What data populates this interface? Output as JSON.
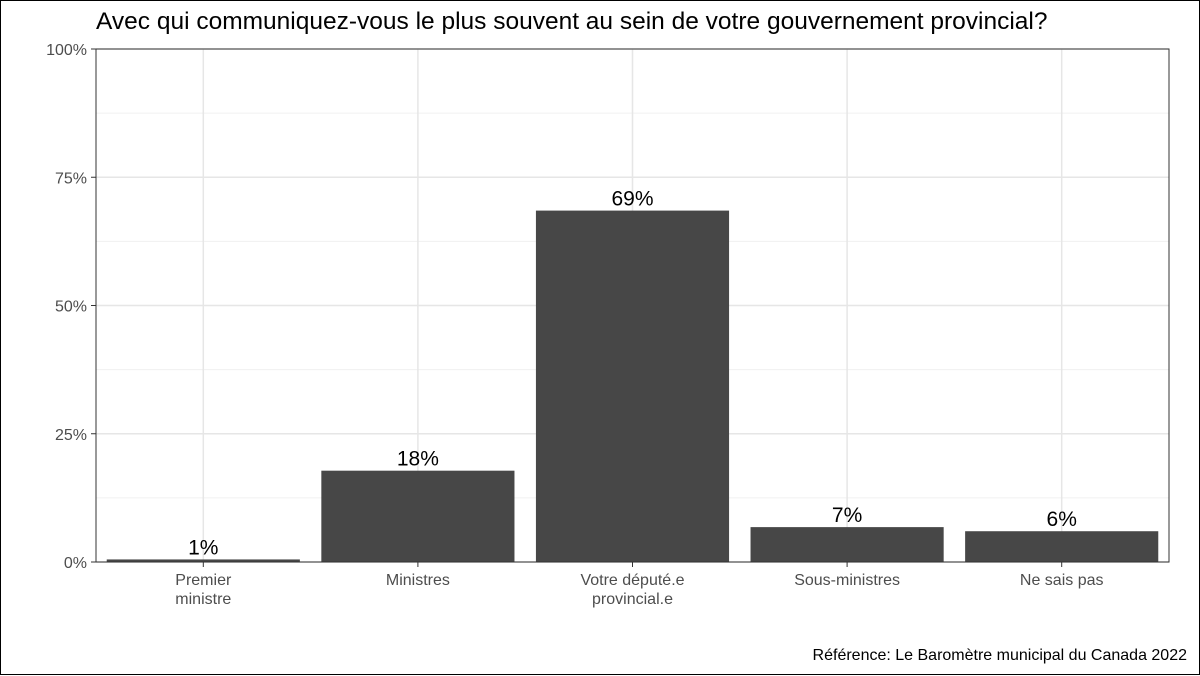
{
  "chart_data": {
    "type": "bar",
    "title": "Avec qui communiquez-vous le plus souvent au sein de votre gouvernement provincial?",
    "caption": "Référence: Le Baromètre municipal du Canada 2022",
    "categories": [
      [
        "Premier",
        "ministre"
      ],
      [
        "Ministres"
      ],
      [
        "Votre député.e",
        "provincial.e"
      ],
      [
        "Sous-ministres"
      ],
      [
        "Ne sais pas"
      ]
    ],
    "values": [
      0.5,
      17.8,
      68.5,
      6.8,
      6.0
    ],
    "value_labels": [
      "1%",
      "18%",
      "69%",
      "7%",
      "6%"
    ],
    "ylim": [
      0,
      100
    ],
    "y_ticks": [
      0,
      25,
      50,
      75,
      100
    ],
    "y_tick_labels": [
      "0%",
      "25%",
      "50%",
      "75%",
      "100%"
    ],
    "xlabel": "",
    "ylabel": "",
    "grid": true,
    "colors": {
      "bar": "#474747",
      "grid_major": "#e6e6e6",
      "grid_minor": "#f0f0f0",
      "panel_border": "#333333",
      "tick_text": "#4d4d4d",
      "label_text": "#000000"
    }
  }
}
